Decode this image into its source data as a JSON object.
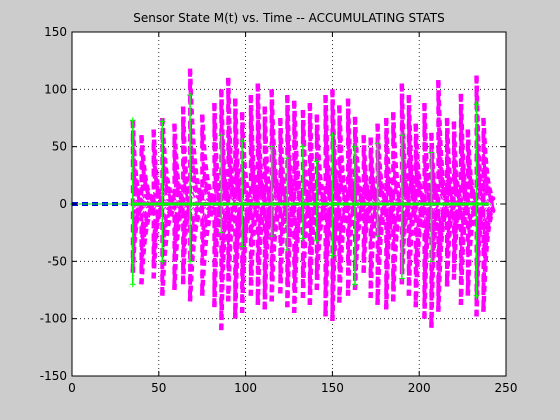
{
  "chart_data": {
    "type": "line",
    "title": "Sensor State M(t) vs. Time -- ACCUMULATING STATS",
    "xlabel": "",
    "ylabel": "",
    "xlim": [
      0,
      250
    ],
    "ylim": [
      -150,
      150
    ],
    "xticks": [
      0,
      50,
      100,
      150,
      200,
      250
    ],
    "yticks": [
      -150,
      -100,
      -50,
      0,
      50,
      100,
      150
    ],
    "grid": true,
    "series": [
      {
        "style": "magenta dashed spikes (envelope traces)",
        "color": "#ff00ff",
        "onset": 35,
        "spike_times": [
          35,
          40,
          47,
          52,
          59,
          64,
          68,
          75,
          82,
          86,
          90,
          94,
          98,
          103,
          107,
          111,
          115,
          120,
          124,
          128,
          133,
          137,
          141,
          146,
          150,
          154,
          159,
          163,
          168,
          172,
          176,
          181,
          185,
          190,
          194,
          198,
          203,
          207,
          211,
          216,
          220,
          224,
          228,
          233,
          237
        ],
        "peak_values": [
          73,
          60,
          65,
          75,
          70,
          85,
          118,
          78,
          88,
          100,
          110,
          92,
          80,
          95,
          105,
          85,
          100,
          75,
          95,
          90,
          82,
          88,
          78,
          95,
          100,
          86,
          92,
          76,
          60,
          58,
          70,
          75,
          80,
          105,
          95,
          70,
          88,
          62,
          108,
          75,
          72,
          96,
          65,
          112,
          75
        ],
        "trough_values": [
          -60,
          -70,
          -65,
          -80,
          -75,
          -70,
          -85,
          -80,
          -90,
          -110,
          -85,
          -100,
          -95,
          -80,
          -88,
          -92,
          -85,
          -78,
          -90,
          -95,
          -82,
          -88,
          -75,
          -98,
          -102,
          -86,
          -80,
          -75,
          -60,
          -82,
          -88,
          -92,
          -85,
          -70,
          -80,
          -90,
          -100,
          -108,
          -94,
          -72,
          -66,
          -88,
          -80,
          -98,
          -94
        ]
      },
      {
        "style": "blue dashed baseline",
        "color": "#0000ff",
        "x": [
          0,
          35
        ],
        "y": [
          0,
          0
        ]
      },
      {
        "style": "green solid spikes with star markers",
        "color": "#00ff00",
        "spike_times": [
          35,
          52,
          68,
          86,
          98,
          115,
          124,
          133,
          141,
          150,
          163,
          176,
          190,
          207,
          233
        ],
        "peak_values": [
          73,
          72,
          95,
          60,
          55,
          50,
          40,
          50,
          37,
          60,
          50,
          53,
          60,
          45,
          87
        ],
        "trough_values": [
          -70,
          -50,
          -50,
          -25,
          -37,
          -28,
          -40,
          -30,
          -32,
          -45,
          -70,
          -28,
          -65,
          -50,
          -80
        ]
      }
    ]
  },
  "colors": {
    "figure_bg": "#cccccc",
    "axes_bg": "#ffffff",
    "magenta": "#ff00ff",
    "blue": "#0000ff",
    "green": "#00ff00",
    "grid": "#000000"
  }
}
